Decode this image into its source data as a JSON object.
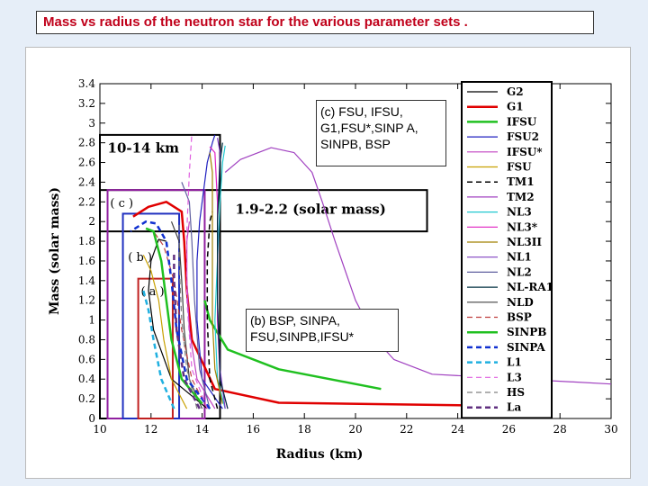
{
  "slide_title": "Mass vs  radius of the neutron star  for the various parameter sets .",
  "colors": {
    "title_text": "#c0001a",
    "background": "#e6eef8"
  },
  "chart_data": {
    "type": "line",
    "title": "",
    "xlabel": "Radius (km)",
    "ylabel": "Mass (solar mass)",
    "xlim": [
      10,
      30
    ],
    "ylim": [
      0,
      3.4
    ],
    "xticks": [
      "10",
      "12",
      "14",
      "16",
      "18",
      "20",
      "22",
      "24",
      "26",
      "28",
      "30"
    ],
    "yticks": [
      "0",
      "0.2",
      "0.4",
      "0.6",
      "0.8",
      "1",
      "1.2",
      "1.4",
      "1.6",
      "1.8",
      "2",
      "2.2",
      "2.4",
      "2.6",
      "2.8",
      "3",
      "3.2",
      "3.4"
    ],
    "grid": false,
    "legend_position": "right",
    "series": [
      {
        "name": "G2",
        "color": "#000000",
        "dash": "",
        "width": 1.2,
        "points": [
          [
            14.2,
            0.1
          ],
          [
            12.8,
            0.4
          ],
          [
            12.1,
            0.9
          ],
          [
            11.9,
            1.3
          ],
          [
            12.0,
            1.6
          ],
          [
            12.3,
            1.82
          ],
          [
            12.6,
            1.8
          ]
        ]
      },
      {
        "name": "G1",
        "color": "#e00000",
        "dash": "",
        "width": 2.5,
        "points": [
          [
            25.5,
            0.13
          ],
          [
            17,
            0.16
          ],
          [
            14.5,
            0.3
          ],
          [
            13.6,
            0.8
          ],
          [
            13.4,
            1.3
          ],
          [
            13.3,
            1.8
          ],
          [
            13.2,
            2.1
          ],
          [
            12.6,
            2.2
          ],
          [
            11.9,
            2.15
          ],
          [
            11.3,
            2.05
          ]
        ]
      },
      {
        "name": "IFSU",
        "color": "#20c020",
        "dash": "",
        "width": 2.5,
        "points": [
          [
            21,
            0.3
          ],
          [
            17,
            0.5
          ],
          [
            15,
            0.7
          ],
          [
            14.3,
            1.0
          ],
          [
            14.1,
            1.2
          ]
        ]
      },
      {
        "name": "FSU2",
        "color": "#2020c0",
        "dash": "",
        "width": 1.2,
        "points": [
          [
            14.8,
            0.1
          ],
          [
            14.0,
            0.4
          ],
          [
            13.8,
            1.0
          ],
          [
            13.8,
            1.6
          ],
          [
            13.9,
            2.0
          ],
          [
            14.0,
            2.2
          ],
          [
            14.2,
            2.6
          ],
          [
            14.4,
            2.8
          ],
          [
            14.5,
            2.88
          ]
        ]
      },
      {
        "name": "IFSU*",
        "color": "#c040c0",
        "dash": "",
        "width": 1.2,
        "points": [
          [
            14.5,
            0.1
          ],
          [
            13.8,
            0.4
          ],
          [
            13.5,
            0.9
          ],
          [
            13.4,
            1.4
          ],
          [
            13.4,
            1.8
          ],
          [
            13.5,
            2.0
          ]
        ]
      },
      {
        "name": "FSU",
        "color": "#c8a000",
        "dash": "",
        "width": 1.2,
        "points": [
          [
            13.4,
            0.1
          ],
          [
            12.8,
            0.4
          ],
          [
            12.5,
            0.8
          ],
          [
            12.3,
            1.2
          ],
          [
            12.0,
            1.5
          ],
          [
            11.7,
            1.66
          ]
        ]
      },
      {
        "name": "TM1",
        "color": "#000000",
        "dash": "6,4",
        "width": 1.5,
        "points": [
          [
            14.6,
            0.1
          ],
          [
            14.3,
            0.4
          ],
          [
            14.2,
            1.0
          ],
          [
            14.2,
            1.6
          ],
          [
            14.3,
            2.0
          ],
          [
            14.4,
            2.1
          ]
        ]
      },
      {
        "name": "TM2",
        "color": "#a040c0",
        "dash": "",
        "width": 1.2,
        "points": [
          [
            30,
            0.35
          ],
          [
            23,
            0.45
          ],
          [
            21.5,
            0.6
          ],
          [
            20.8,
            0.8
          ],
          [
            20.0,
            1.2
          ],
          [
            19.2,
            1.8
          ],
          [
            18.7,
            2.2
          ],
          [
            18.3,
            2.5
          ],
          [
            17.6,
            2.7
          ],
          [
            16.7,
            2.75
          ],
          [
            15.5,
            2.63
          ],
          [
            14.9,
            2.5
          ]
        ]
      },
      {
        "name": "NL3",
        "color": "#20c8d0",
        "dash": "",
        "width": 1.2,
        "points": [
          [
            14.9,
            0.1
          ],
          [
            14.6,
            0.4
          ],
          [
            14.5,
            1.0
          ],
          [
            14.6,
            1.6
          ],
          [
            14.7,
            2.2
          ],
          [
            14.8,
            2.6
          ],
          [
            14.9,
            2.77
          ]
        ]
      },
      {
        "name": "NL3*",
        "color": "#e020c0",
        "dash": "",
        "width": 1.2,
        "points": [
          [
            15.0,
            0.1
          ],
          [
            14.7,
            0.4
          ],
          [
            14.6,
            1.0
          ],
          [
            14.6,
            1.6
          ],
          [
            14.6,
            2.2
          ],
          [
            14.5,
            2.7
          ],
          [
            14.3,
            2.76
          ]
        ]
      },
      {
        "name": "NL3II",
        "color": "#a08000",
        "dash": "",
        "width": 1.2,
        "points": [
          [
            14.8,
            0.15
          ],
          [
            14.5,
            0.5
          ],
          [
            14.4,
            1.0
          ],
          [
            14.4,
            1.8
          ],
          [
            14.4,
            2.5
          ],
          [
            14.3,
            2.7
          ]
        ]
      },
      {
        "name": "NL1",
        "color": "#8040c0",
        "dash": "",
        "width": 1.2,
        "points": [
          [
            14.9,
            0.1
          ],
          [
            14.7,
            0.5
          ],
          [
            14.6,
            1.2
          ],
          [
            14.6,
            2.0
          ],
          [
            14.7,
            2.7
          ],
          [
            14.6,
            2.85
          ]
        ]
      },
      {
        "name": "NL2",
        "color": "#6060a0",
        "dash": "",
        "width": 1.2,
        "points": [
          [
            14.3,
            0.1
          ],
          [
            13.9,
            0.5
          ],
          [
            13.7,
            1.2
          ],
          [
            13.6,
            1.8
          ],
          [
            13.5,
            2.2
          ],
          [
            13.2,
            2.4
          ]
        ]
      },
      {
        "name": "NL-RA1",
        "color": "#003040",
        "dash": "",
        "width": 1.2,
        "points": [
          [
            15.0,
            0.1
          ],
          [
            14.7,
            0.4
          ],
          [
            14.6,
            1.2
          ],
          [
            14.6,
            2.0
          ],
          [
            14.7,
            2.6
          ],
          [
            14.8,
            2.8
          ]
        ]
      },
      {
        "name": "NLD",
        "color": "#404040",
        "dash": "",
        "width": 1.2,
        "points": [
          [
            14.0,
            0.1
          ],
          [
            13.5,
            0.4
          ],
          [
            13.3,
            0.9
          ],
          [
            13.2,
            1.4
          ],
          [
            13.1,
            1.8
          ],
          [
            12.8,
            2.0
          ]
        ]
      },
      {
        "name": "BSP",
        "color": "#c04040",
        "dash": "6,4",
        "width": 1.2,
        "points": [
          [
            14.2,
            0.1
          ],
          [
            13.6,
            0.4
          ],
          [
            13.2,
            0.9
          ],
          [
            12.9,
            1.4
          ],
          [
            12.5,
            1.75
          ],
          [
            12.1,
            1.9
          ]
        ]
      },
      {
        "name": "SINPB",
        "color": "#20c020",
        "dash": "",
        "width": 2.5,
        "points": [
          [
            14.0,
            0.15
          ],
          [
            13.2,
            0.4
          ],
          [
            12.8,
            0.8
          ],
          [
            12.6,
            1.2
          ],
          [
            12.4,
            1.6
          ],
          [
            12.1,
            1.9
          ],
          [
            11.8,
            1.93
          ]
        ]
      },
      {
        "name": "SINPA",
        "color": "#1030d0",
        "dash": "6,4",
        "width": 2.5,
        "points": [
          [
            14.3,
            0.1
          ],
          [
            13.4,
            0.4
          ],
          [
            13.0,
            0.9
          ],
          [
            12.8,
            1.4
          ],
          [
            12.6,
            1.8
          ],
          [
            12.2,
            1.98
          ],
          [
            11.8,
            2.0
          ],
          [
            11.2,
            1.9
          ]
        ]
      },
      {
        "name": "L1",
        "color": "#20b0e0",
        "dash": "6,4",
        "width": 2.5,
        "points": [
          [
            12.9,
            0.1
          ],
          [
            12.4,
            0.4
          ],
          [
            12.1,
            0.8
          ],
          [
            11.9,
            1.1
          ],
          [
            11.7,
            1.3
          ]
        ]
      },
      {
        "name": "L3",
        "color": "#e060e0",
        "dash": "6,4",
        "width": 1.2,
        "points": [
          [
            14.2,
            0.1
          ],
          [
            13.6,
            0.5
          ],
          [
            13.4,
            1.2
          ],
          [
            13.4,
            1.9
          ],
          [
            13.5,
            2.5
          ],
          [
            13.6,
            2.9
          ]
        ]
      },
      {
        "name": "HS",
        "color": "#808080",
        "dash": "6,4",
        "width": 1.2,
        "points": [
          [
            13.8,
            0.1
          ],
          [
            13.4,
            0.5
          ],
          [
            13.2,
            1.0
          ],
          [
            13.1,
            1.6
          ],
          [
            13.1,
            2.0
          ]
        ]
      },
      {
        "name": "La",
        "color": "#603080",
        "dash": "6,4",
        "width": 2.5,
        "points": [
          [
            13.9,
            0.1
          ],
          [
            13.3,
            0.4
          ],
          [
            13.0,
            0.9
          ],
          [
            12.9,
            1.4
          ],
          [
            12.9,
            1.7
          ]
        ]
      }
    ],
    "annotations": {
      "box_10_14": "10-14 km",
      "band_19_22": "1.9-2.2  (solar mass)",
      "label_c": "( c )",
      "label_b": "( b )",
      "label_a": "( a )",
      "caption_c": "(c) FSU, IFSU, G1,FSU*,SINP A, SINPB, BSP",
      "caption_b": "(b) BSP, SINPA, FSU,SINPB,IFSU*"
    }
  }
}
